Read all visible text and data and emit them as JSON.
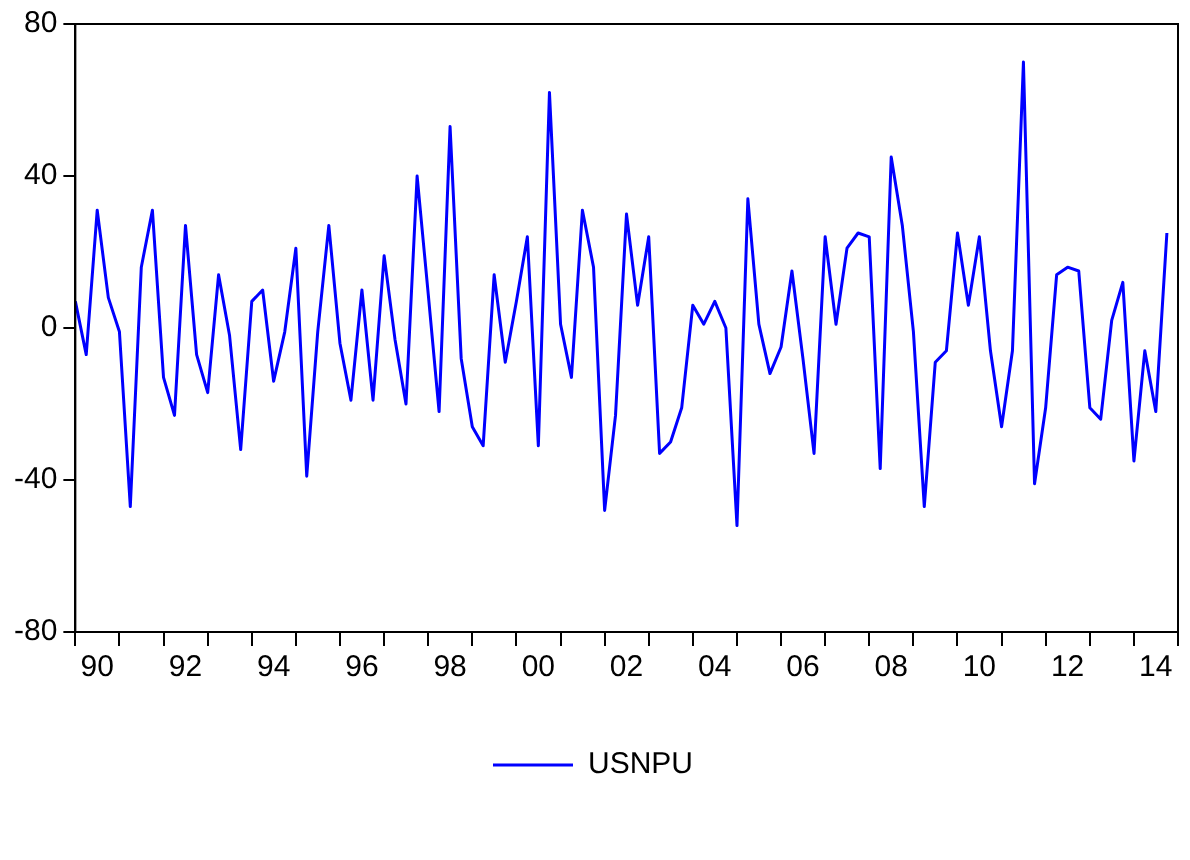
{
  "chart_data": {
    "type": "line",
    "legend": "bottom",
    "grid": false,
    "marker": "none",
    "line_style": "solid",
    "x": [
      "1990-01",
      "1990-04",
      "1990-07",
      "1990-10",
      "1991-01",
      "1991-04",
      "1991-07",
      "1991-10",
      "1992-01",
      "1992-04",
      "1992-07",
      "1992-10",
      "1993-01",
      "1993-04",
      "1993-07",
      "1993-10",
      "1994-01",
      "1994-04",
      "1994-07",
      "1994-10",
      "1995-01",
      "1995-04",
      "1995-07",
      "1995-10",
      "1996-01",
      "1996-04",
      "1996-07",
      "1996-10",
      "1997-01",
      "1997-04",
      "1997-07",
      "1997-10",
      "1998-01",
      "1998-04",
      "1998-07",
      "1998-10",
      "1999-01",
      "1999-04",
      "1999-07",
      "1999-10",
      "2000-01",
      "2000-04",
      "2000-07",
      "2000-10",
      "2001-01",
      "2001-04",
      "2001-07",
      "2001-10",
      "2002-01",
      "2002-04",
      "2002-07",
      "2002-10",
      "2003-01",
      "2003-04",
      "2003-07",
      "2003-10",
      "2004-01",
      "2004-04",
      "2004-07",
      "2004-10",
      "2005-01",
      "2005-04",
      "2005-07",
      "2005-10",
      "2006-01",
      "2006-04",
      "2006-07",
      "2006-10",
      "2007-01",
      "2007-04",
      "2007-07",
      "2007-10",
      "2008-01",
      "2008-04",
      "2008-07",
      "2008-10",
      "2009-01",
      "2009-04",
      "2009-07",
      "2009-10",
      "2010-01",
      "2010-04",
      "2010-07",
      "2010-10",
      "2011-01",
      "2011-04",
      "2011-07",
      "2011-10",
      "2012-01",
      "2012-04",
      "2012-07",
      "2012-10",
      "2013-01",
      "2013-04",
      "2013-07",
      "2013-10",
      "2014-01",
      "2014-04",
      "2014-07",
      "2014-10"
    ],
    "series": [
      {
        "name": "USNPU",
        "color": "#0000ff",
        "values": [
          7,
          -7,
          31,
          8,
          -1,
          -47,
          16,
          31,
          -13,
          -23,
          27,
          -7,
          -17,
          14,
          -2,
          -32,
          7,
          10,
          -14,
          -1,
          21,
          -39,
          -1,
          27,
          -4,
          -19,
          10,
          -19,
          19,
          -3,
          -20,
          40,
          9,
          -22,
          53,
          -8,
          -26,
          -31,
          14,
          -9,
          7,
          24,
          -31,
          62,
          1,
          -13,
          31,
          16,
          -48,
          -23,
          30,
          6,
          24,
          -33,
          -30,
          -21,
          6,
          1,
          7,
          0,
          -52,
          34,
          1,
          -12,
          -5,
          15,
          -8,
          -33,
          24,
          1,
          21,
          25,
          24,
          -37,
          45,
          27,
          -1,
          -47,
          -9,
          -6,
          25,
          6,
          24,
          -6,
          -26,
          -6,
          70,
          -41,
          -21,
          14,
          16,
          15,
          -21,
          -24,
          2,
          12,
          -35,
          -6,
          -22,
          25
        ]
      }
    ],
    "xlim": [
      "1990-01",
      "2015-01"
    ],
    "xticks": [
      {
        "value": "1990-01",
        "label": null
      },
      {
        "value": "1990-07",
        "label": "90"
      },
      {
        "value": "1991-01",
        "label": null
      },
      {
        "value": "1992-01",
        "label": null
      },
      {
        "value": "1992-07",
        "label": "92"
      },
      {
        "value": "1993-01",
        "label": null
      },
      {
        "value": "1994-01",
        "label": null
      },
      {
        "value": "1994-07",
        "label": "94"
      },
      {
        "value": "1995-01",
        "label": null
      },
      {
        "value": "1996-01",
        "label": null
      },
      {
        "value": "1996-07",
        "label": "96"
      },
      {
        "value": "1997-01",
        "label": null
      },
      {
        "value": "1998-01",
        "label": null
      },
      {
        "value": "1998-07",
        "label": "98"
      },
      {
        "value": "1999-01",
        "label": null
      },
      {
        "value": "2000-01",
        "label": null
      },
      {
        "value": "2000-07",
        "label": "00"
      },
      {
        "value": "2001-01",
        "label": null
      },
      {
        "value": "2002-01",
        "label": null
      },
      {
        "value": "2002-07",
        "label": "02"
      },
      {
        "value": "2003-01",
        "label": null
      },
      {
        "value": "2004-01",
        "label": null
      },
      {
        "value": "2004-07",
        "label": "04"
      },
      {
        "value": "2005-01",
        "label": null
      },
      {
        "value": "2006-01",
        "label": null
      },
      {
        "value": "2006-07",
        "label": "06"
      },
      {
        "value": "2007-01",
        "label": null
      },
      {
        "value": "2008-01",
        "label": null
      },
      {
        "value": "2008-07",
        "label": "08"
      },
      {
        "value": "2009-01",
        "label": null
      },
      {
        "value": "2010-01",
        "label": null
      },
      {
        "value": "2010-07",
        "label": "10"
      },
      {
        "value": "2011-01",
        "label": null
      },
      {
        "value": "2012-01",
        "label": null
      },
      {
        "value": "2012-07",
        "label": "12"
      },
      {
        "value": "2013-01",
        "label": null
      },
      {
        "value": "2014-01",
        "label": null
      },
      {
        "value": "2014-07",
        "label": "14"
      },
      {
        "value": "2015-01",
        "label": null
      }
    ],
    "ylim": [
      -80,
      80
    ],
    "yticks": [
      -80,
      -40,
      0,
      40,
      80
    ]
  }
}
